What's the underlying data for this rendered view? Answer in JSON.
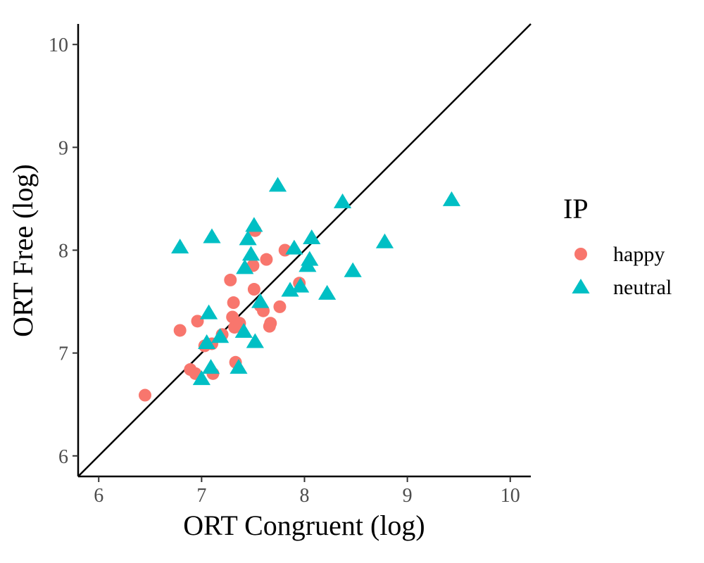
{
  "chart_data": {
    "type": "scatter",
    "xlabel": "ORT Congruent (log)",
    "ylabel": "ORT Free (log)",
    "xlim": [
      5.8,
      10.2
    ],
    "ylim": [
      5.8,
      10.2
    ],
    "xticks": [
      "6",
      "7",
      "8",
      "9",
      "10"
    ],
    "yticks": [
      "6",
      "7",
      "8",
      "9",
      "10"
    ],
    "reference_line": "y = x",
    "grid": false,
    "legend": {
      "title": "IP",
      "placement": "right"
    },
    "series": [
      {
        "name": "happy",
        "shape": "circle",
        "color": "#F8766D",
        "points": [
          [
            6.45,
            6.59
          ],
          [
            6.79,
            7.22
          ],
          [
            6.89,
            6.84
          ],
          [
            6.94,
            6.8
          ],
          [
            6.96,
            7.31
          ],
          [
            7.03,
            7.07
          ],
          [
            7.1,
            7.09
          ],
          [
            7.11,
            6.8
          ],
          [
            7.2,
            7.18
          ],
          [
            7.28,
            7.71
          ],
          [
            7.3,
            7.35
          ],
          [
            7.31,
            7.49
          ],
          [
            7.32,
            7.25
          ],
          [
            7.33,
            6.91
          ],
          [
            7.37,
            7.29
          ],
          [
            7.5,
            7.85
          ],
          [
            7.51,
            7.62
          ],
          [
            7.52,
            8.19
          ],
          [
            7.57,
            7.46
          ],
          [
            7.6,
            7.41
          ],
          [
            7.63,
            7.91
          ],
          [
            7.66,
            7.26
          ],
          [
            7.67,
            7.29
          ],
          [
            7.76,
            7.45
          ],
          [
            7.81,
            8.0
          ],
          [
            7.95,
            7.68
          ]
        ]
      },
      {
        "name": "neutral",
        "shape": "triangle",
        "color": "#00BFC4",
        "points": [
          [
            6.79,
            8.03
          ],
          [
            7.0,
            6.75
          ],
          [
            7.05,
            7.1
          ],
          [
            7.07,
            7.39
          ],
          [
            7.09,
            6.86
          ],
          [
            7.1,
            8.13
          ],
          [
            7.18,
            7.16
          ],
          [
            7.36,
            6.86
          ],
          [
            7.41,
            7.21
          ],
          [
            7.42,
            7.83
          ],
          [
            7.45,
            8.11
          ],
          [
            7.48,
            7.96
          ],
          [
            7.51,
            8.24
          ],
          [
            7.52,
            7.11
          ],
          [
            7.57,
            7.5
          ],
          [
            7.74,
            8.63
          ],
          [
            7.86,
            7.61
          ],
          [
            7.9,
            8.02
          ],
          [
            7.96,
            7.65
          ],
          [
            8.03,
            7.85
          ],
          [
            8.05,
            7.91
          ],
          [
            8.07,
            8.12
          ],
          [
            8.22,
            7.58
          ],
          [
            8.37,
            8.47
          ],
          [
            8.47,
            7.8
          ],
          [
            8.78,
            8.08
          ],
          [
            9.43,
            8.49
          ]
        ]
      }
    ]
  }
}
